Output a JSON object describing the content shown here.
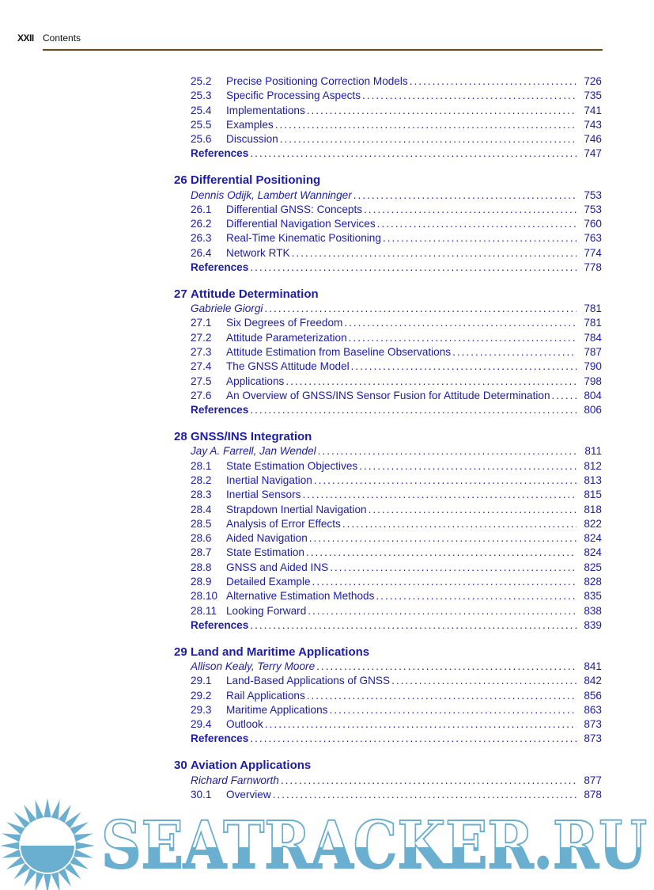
{
  "header": {
    "page_roman": "XXII",
    "title": "Contents"
  },
  "blocks": [
    {
      "chapter": null,
      "entries": [
        {
          "num": "25.2",
          "title": "Precise Positioning Correction Models",
          "page": "726"
        },
        {
          "num": "25.3",
          "title": "Specific Processing Aspects",
          "page": "735"
        },
        {
          "num": "25.4",
          "title": "Implementations",
          "page": "741"
        },
        {
          "num": "25.5",
          "title": "Examples",
          "page": "743"
        },
        {
          "num": "25.6",
          "title": "Discussion",
          "page": "746"
        }
      ],
      "references": {
        "label": "References",
        "page": "747"
      }
    },
    {
      "chapter": {
        "num": "26",
        "title": "Differential Positioning"
      },
      "authors": {
        "text": "Dennis Odijk, Lambert Wanninger",
        "page": "753"
      },
      "entries": [
        {
          "num": "26.1",
          "title": "Differential GNSS: Concepts",
          "page": "753"
        },
        {
          "num": "26.2",
          "title": "Differential Navigation Services",
          "page": "760"
        },
        {
          "num": "26.3",
          "title": "Real-Time Kinematic Positioning",
          "page": "763"
        },
        {
          "num": "26.4",
          "title": "Network RTK",
          "page": "774"
        }
      ],
      "references": {
        "label": "References",
        "page": "778"
      }
    },
    {
      "chapter": {
        "num": "27",
        "title": "Attitude Determination"
      },
      "authors": {
        "text": "Gabriele Giorgi",
        "page": "781"
      },
      "entries": [
        {
          "num": "27.1",
          "title": "Six Degrees of Freedom",
          "page": "781"
        },
        {
          "num": "27.2",
          "title": "Attitude Parameterization",
          "page": "784"
        },
        {
          "num": "27.3",
          "title": "Attitude Estimation from Baseline Observations",
          "page": "787"
        },
        {
          "num": "27.4",
          "title": "The GNSS Attitude Model",
          "page": "790"
        },
        {
          "num": "27.5",
          "title": "Applications",
          "page": "798"
        },
        {
          "num": "27.6",
          "title": "An Overview of GNSS/INS Sensor Fusion for Attitude Determination",
          "page": "804"
        }
      ],
      "references": {
        "label": "References",
        "page": "806"
      }
    },
    {
      "chapter": {
        "num": "28",
        "title": "GNSS/INS Integration"
      },
      "authors": {
        "text": "Jay A. Farrell, Jan Wendel",
        "page": "811"
      },
      "entries": [
        {
          "num": "28.1",
          "title": "State Estimation Objectives",
          "page": "812"
        },
        {
          "num": "28.2",
          "title": "Inertial Navigation",
          "page": "813"
        },
        {
          "num": "28.3",
          "title": "Inertial Sensors",
          "page": "815"
        },
        {
          "num": "28.4",
          "title": "Strapdown Inertial Navigation",
          "page": "818"
        },
        {
          "num": "28.5",
          "title": "Analysis of Error Effects",
          "page": "822"
        },
        {
          "num": "28.6",
          "title": "Aided Navigation",
          "page": "824"
        },
        {
          "num": "28.7",
          "title": "State Estimation",
          "page": "824"
        },
        {
          "num": "28.8",
          "title": "GNSS and Aided INS",
          "page": "825"
        },
        {
          "num": "28.9",
          "title": "Detailed Example",
          "page": "828"
        },
        {
          "num": "28.10",
          "title": "Alternative Estimation Methods",
          "page": "835"
        },
        {
          "num": "28.11",
          "title": "Looking Forward",
          "page": "838"
        }
      ],
      "references": {
        "label": "References",
        "page": "839"
      }
    },
    {
      "chapter": {
        "num": "29",
        "title": "Land and Maritime Applications"
      },
      "authors": {
        "text": "Allison Kealy, Terry Moore",
        "page": "841"
      },
      "entries": [
        {
          "num": "29.1",
          "title": "Land-Based Applications of GNSS",
          "page": "842"
        },
        {
          "num": "29.2",
          "title": "Rail Applications",
          "page": "856"
        },
        {
          "num": "29.3",
          "title": "Maritime Applications",
          "page": "863"
        },
        {
          "num": "29.4",
          "title": "Outlook",
          "page": "873"
        }
      ],
      "references": {
        "label": "References",
        "page": "873"
      }
    },
    {
      "chapter": {
        "num": "30",
        "title": "Aviation Applications"
      },
      "authors": {
        "text": "Richard Farnworth",
        "page": "877"
      },
      "entries": [
        {
          "num": "30.1",
          "title": "Overview",
          "page": "878"
        }
      ],
      "references": null
    }
  ],
  "watermark": {
    "text": "SEATRACKER.RU",
    "color": "#6aaed0"
  },
  "colors": {
    "text": "#1c1ca8",
    "rule": "#6b4a1a"
  }
}
